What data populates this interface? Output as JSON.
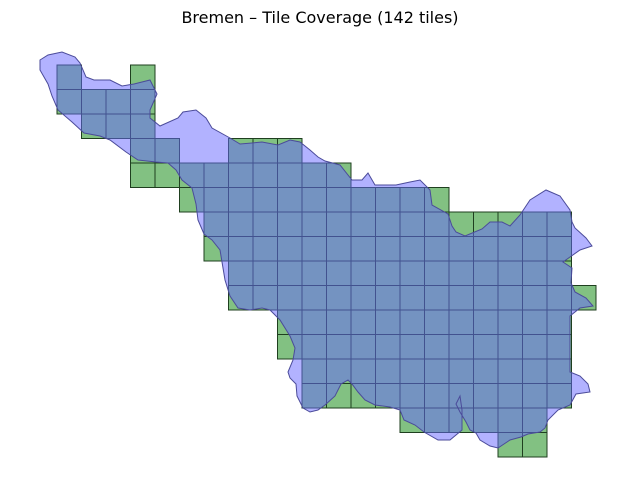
{
  "chart_data": {
    "type": "map",
    "title": "Bremen – Tile Coverage (142 tiles)",
    "tile_count": 142,
    "axes": "off",
    "grid": false,
    "colors": {
      "tile_fill": "#3f9f3f",
      "tile_edge": "#1f3f1f",
      "boundary_fill": "#6666ff",
      "boundary_edge": "#4b4b9a",
      "overlap": "#4f7fa0"
    },
    "series": [
      {
        "name": "",
        "kind": "boundary-polygon"
      },
      {
        "name": "",
        "kind": "tile-grid"
      }
    ]
  }
}
